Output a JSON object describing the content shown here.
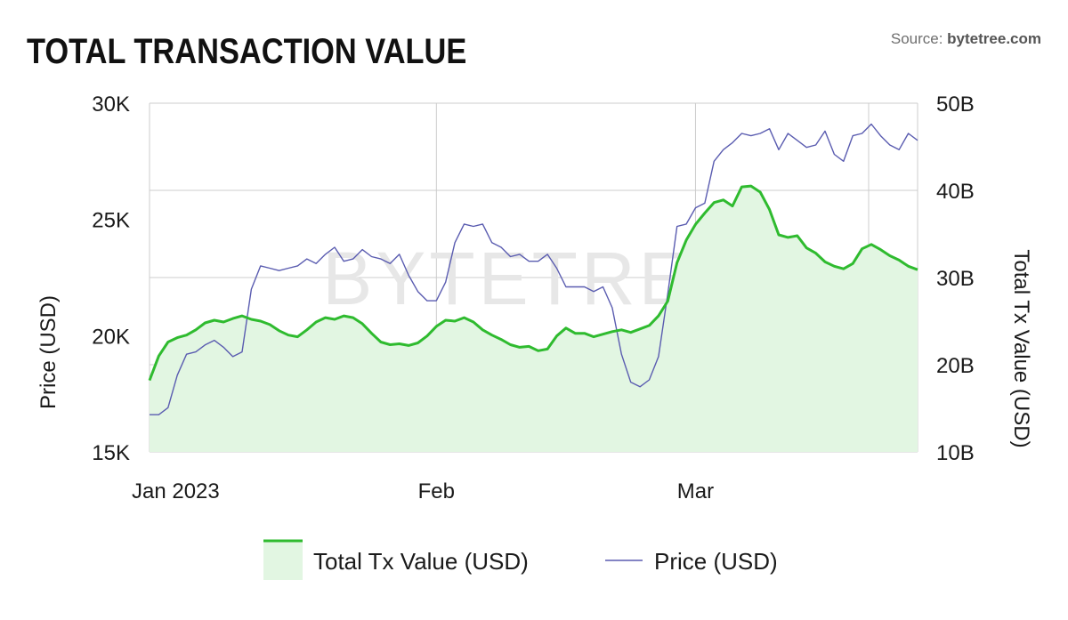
{
  "header": {
    "title": "TOTAL TRANSACTION VALUE",
    "source_prefix": "Source: ",
    "source_name": "bytetree.com"
  },
  "watermark": "BYTETREE",
  "colors": {
    "tx_line": "#2fbb2f",
    "tx_fill": "#e2f6e2",
    "price_line": "#5a5cb0",
    "grid": "#cccccc"
  },
  "chart_data": {
    "type": "line",
    "title": "TOTAL TRANSACTION VALUE",
    "x_axis": {
      "type": "date",
      "range": [
        "2023-01-01",
        "2023-03-25"
      ],
      "ticks": [
        {
          "date": "2023-01-01",
          "label": "Jan 2023"
        },
        {
          "date": "2023-02-01",
          "label": "Feb"
        },
        {
          "date": "2023-03-01",
          "label": "Mar"
        }
      ]
    },
    "y_left": {
      "label": "Price (USD)",
      "range": [
        15000,
        30000
      ],
      "ticks": [
        {
          "value": 15000,
          "label": "15K"
        },
        {
          "value": 20000,
          "label": "20K"
        },
        {
          "value": 25000,
          "label": "25K"
        },
        {
          "value": 30000,
          "label": "30K"
        }
      ]
    },
    "y_right": {
      "label": "Total Tx Value (USD)",
      "range": [
        10000000000,
        50000000000
      ],
      "ticks": [
        {
          "value": 10000000000,
          "label": "10B"
        },
        {
          "value": 20000000000,
          "label": "20B"
        },
        {
          "value": 30000000000,
          "label": "30B"
        },
        {
          "value": 40000000000,
          "label": "40B"
        },
        {
          "value": 50000000000,
          "label": "50B"
        }
      ]
    },
    "grid": true,
    "legend_position": "bottom",
    "series": [
      {
        "name": "Total Tx Value (USD)",
        "axis": "right",
        "style": "area",
        "x": [
          "2023-01-01",
          "2023-01-02",
          "2023-01-03",
          "2023-01-04",
          "2023-01-05",
          "2023-01-06",
          "2023-01-07",
          "2023-01-08",
          "2023-01-09",
          "2023-01-10",
          "2023-01-11",
          "2023-01-12",
          "2023-01-13",
          "2023-01-14",
          "2023-01-15",
          "2023-01-16",
          "2023-01-17",
          "2023-01-18",
          "2023-01-19",
          "2023-01-20",
          "2023-01-21",
          "2023-01-22",
          "2023-01-23",
          "2023-01-24",
          "2023-01-25",
          "2023-01-26",
          "2023-01-27",
          "2023-01-28",
          "2023-01-29",
          "2023-01-30",
          "2023-01-31",
          "2023-02-01",
          "2023-02-02",
          "2023-02-03",
          "2023-02-04",
          "2023-02-05",
          "2023-02-06",
          "2023-02-07",
          "2023-02-08",
          "2023-02-09",
          "2023-02-10",
          "2023-02-11",
          "2023-02-12",
          "2023-02-13",
          "2023-02-14",
          "2023-02-15",
          "2023-02-16",
          "2023-02-17",
          "2023-02-18",
          "2023-02-19",
          "2023-02-20",
          "2023-02-21",
          "2023-02-22",
          "2023-02-23",
          "2023-02-24",
          "2023-02-25",
          "2023-02-26",
          "2023-02-27",
          "2023-02-28",
          "2023-03-01",
          "2023-03-02",
          "2023-03-03",
          "2023-03-04",
          "2023-03-05",
          "2023-03-06",
          "2023-03-07",
          "2023-03-08",
          "2023-03-09",
          "2023-03-10",
          "2023-03-11",
          "2023-03-12",
          "2023-03-13",
          "2023-03-14",
          "2023-03-15",
          "2023-03-16",
          "2023-03-17",
          "2023-03-18",
          "2023-03-19",
          "2023-03-20",
          "2023-03-21",
          "2023-03-22",
          "2023-03-23",
          "2023-03-24",
          "2023-03-25"
        ],
        "values": [
          18.2,
          21.0,
          22.6,
          23.1,
          23.4,
          24.0,
          24.8,
          25.1,
          24.9,
          25.3,
          25.6,
          25.2,
          25.0,
          24.6,
          23.9,
          23.4,
          23.2,
          24.0,
          24.9,
          25.4,
          25.2,
          25.6,
          25.4,
          24.7,
          23.6,
          22.6,
          22.3,
          22.4,
          22.2,
          22.5,
          23.3,
          24.4,
          25.1,
          25.0,
          25.4,
          24.9,
          24.0,
          23.4,
          22.9,
          22.3,
          22.0,
          22.1,
          21.6,
          21.8,
          23.3,
          24.2,
          23.6,
          23.6,
          23.2,
          23.5,
          23.8,
          24.0,
          23.7,
          24.1,
          24.5,
          25.6,
          27.3,
          31.7,
          34.3,
          36.1,
          37.4,
          38.6,
          38.9,
          38.2,
          40.4,
          40.5,
          39.8,
          37.8,
          34.9,
          34.6,
          34.8,
          33.4,
          32.8,
          31.8,
          31.3,
          31.0,
          31.6,
          33.3,
          33.8,
          33.2,
          32.5,
          32.0,
          31.3,
          30.9
        ]
      },
      {
        "name": "Price (USD)",
        "axis": "left",
        "style": "line",
        "x": [
          "2023-01-01",
          "2023-01-02",
          "2023-01-03",
          "2023-01-04",
          "2023-01-05",
          "2023-01-06",
          "2023-01-07",
          "2023-01-08",
          "2023-01-09",
          "2023-01-10",
          "2023-01-11",
          "2023-01-12",
          "2023-01-13",
          "2023-01-14",
          "2023-01-15",
          "2023-01-16",
          "2023-01-17",
          "2023-01-18",
          "2023-01-19",
          "2023-01-20",
          "2023-01-21",
          "2023-01-22",
          "2023-01-23",
          "2023-01-24",
          "2023-01-25",
          "2023-01-26",
          "2023-01-27",
          "2023-01-28",
          "2023-01-29",
          "2023-01-30",
          "2023-01-31",
          "2023-02-01",
          "2023-02-02",
          "2023-02-03",
          "2023-02-04",
          "2023-02-05",
          "2023-02-06",
          "2023-02-07",
          "2023-02-08",
          "2023-02-09",
          "2023-02-10",
          "2023-02-11",
          "2023-02-12",
          "2023-02-13",
          "2023-02-14",
          "2023-02-15",
          "2023-02-16",
          "2023-02-17",
          "2023-02-18",
          "2023-02-19",
          "2023-02-20",
          "2023-02-21",
          "2023-02-22",
          "2023-02-23",
          "2023-02-24",
          "2023-02-25",
          "2023-02-26",
          "2023-02-27",
          "2023-02-28",
          "2023-03-01",
          "2023-03-02",
          "2023-03-03",
          "2023-03-04",
          "2023-03-05",
          "2023-03-06",
          "2023-03-07",
          "2023-03-08",
          "2023-03-09",
          "2023-03-10",
          "2023-03-11",
          "2023-03-12",
          "2023-03-13",
          "2023-03-14",
          "2023-03-15",
          "2023-03-16",
          "2023-03-17",
          "2023-03-18",
          "2023-03-19",
          "2023-03-20",
          "2023-03-21",
          "2023-03-22",
          "2023-03-23",
          "2023-03-24",
          "2023-03-25"
        ],
        "values": [
          16.6,
          16.6,
          16.9,
          18.3,
          19.2,
          19.3,
          19.6,
          19.8,
          19.5,
          19.1,
          19.3,
          22.0,
          23.0,
          22.9,
          22.8,
          22.9,
          23.0,
          23.3,
          23.1,
          23.5,
          23.8,
          23.2,
          23.3,
          23.7,
          23.4,
          23.3,
          23.1,
          23.5,
          22.6,
          21.9,
          21.5,
          21.5,
          22.3,
          24.0,
          24.8,
          24.7,
          24.8,
          24.0,
          23.8,
          23.4,
          23.5,
          23.2,
          23.2,
          23.5,
          22.9,
          22.1,
          22.1,
          22.1,
          21.9,
          22.1,
          21.2,
          19.2,
          18.0,
          17.8,
          18.1,
          19.1,
          21.8,
          24.7,
          24.8,
          25.5,
          25.7,
          27.5,
          28.0,
          28.3,
          28.7,
          28.6,
          28.7,
          28.9,
          28.0,
          28.7,
          28.4,
          28.1,
          28.2,
          28.8,
          27.8,
          27.5,
          28.6,
          28.7,
          29.1,
          28.6,
          28.2,
          28.0,
          28.7,
          28.4
        ]
      }
    ]
  },
  "legend": {
    "items": [
      {
        "label": "Total Tx Value (USD)"
      },
      {
        "label": "Price (USD)"
      }
    ]
  }
}
